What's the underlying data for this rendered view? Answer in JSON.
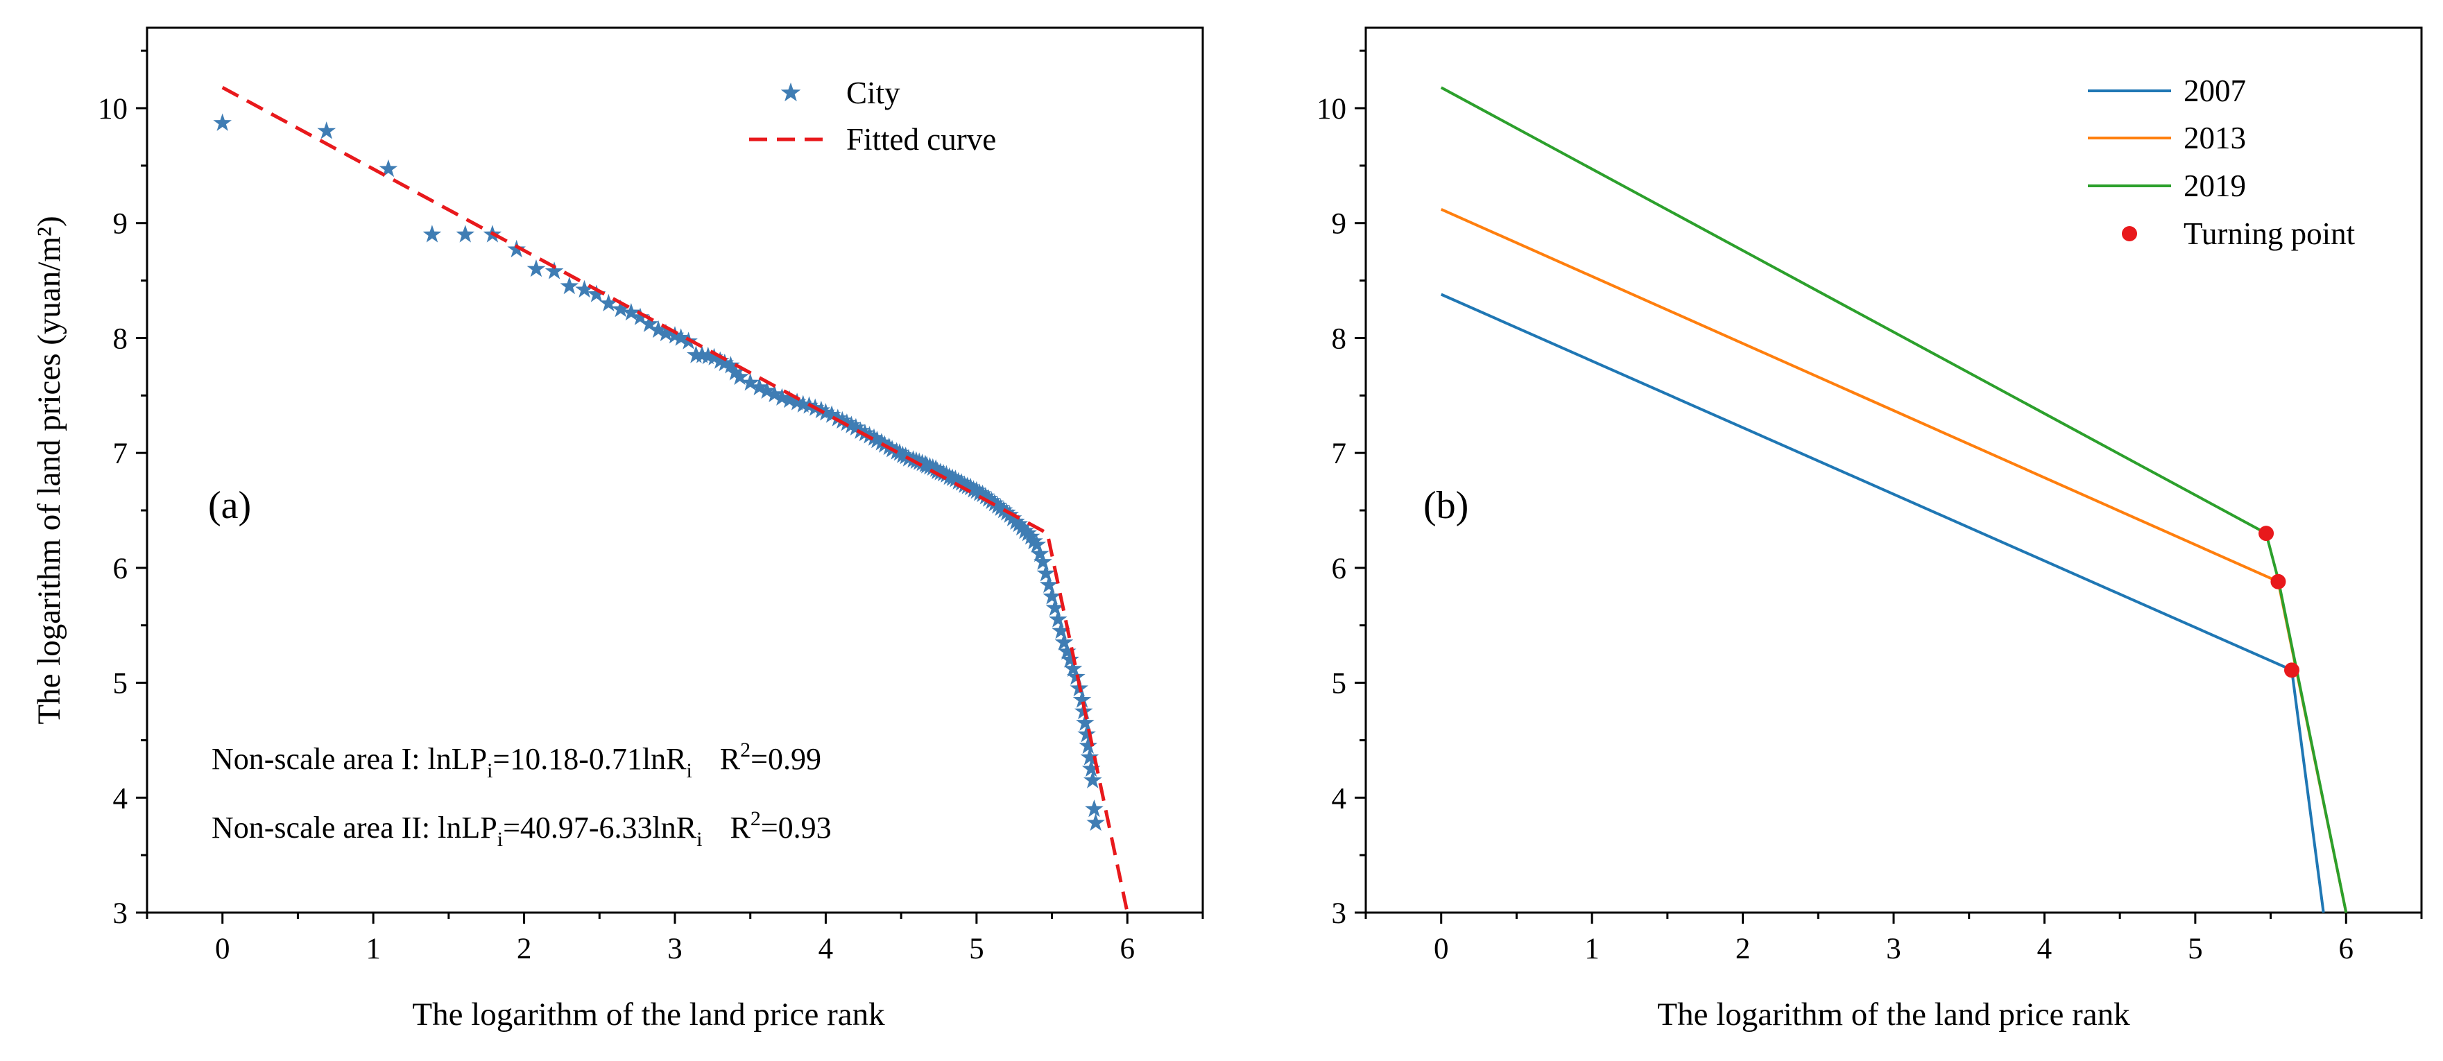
{
  "chart_data": [
    {
      "type": "scatter",
      "panel_label": "(a)",
      "xlabel": "The logarithm of the land price rank",
      "ylabel": "The logarithm of land prices (yuan/m²)",
      "xlim": [
        -0.5,
        6.5
      ],
      "ylim": [
        3,
        10.7
      ],
      "xticks": [
        0,
        1,
        2,
        3,
        4,
        5,
        6
      ],
      "yticks": [
        3,
        4,
        5,
        6,
        7,
        8,
        9,
        10
      ],
      "grid": false,
      "legend": {
        "placement": "top-right",
        "entries": [
          {
            "name": "City",
            "marker": "star",
            "color": "#3f7db4"
          },
          {
            "name": "Fitted curve",
            "style": "dashed",
            "color": "#e8191c"
          }
        ]
      },
      "series": [
        {
          "name": "City",
          "kind": "scatter",
          "marker": "star",
          "color": "#3f7db4",
          "x": [
            0,
            0.69,
            1.1,
            1.39,
            1.61,
            1.79,
            1.95,
            2.08,
            2.2,
            2.3,
            2.4,
            2.48,
            2.56,
            2.64,
            2.71,
            2.77,
            2.83,
            2.89,
            2.94,
            3.0,
            3.04,
            3.09,
            3.14,
            3.18,
            3.22,
            3.26,
            3.3,
            3.33,
            3.37,
            3.4,
            3.43,
            3.5,
            3.56,
            3.61,
            3.66,
            3.71,
            3.76,
            3.81,
            3.85,
            3.89,
            3.93,
            3.97,
            4.0,
            4.04,
            4.08,
            4.11,
            4.14,
            4.17,
            4.2,
            4.23,
            4.26,
            4.29,
            4.32,
            4.34,
            4.37,
            4.39,
            4.42,
            4.44,
            4.47,
            4.49,
            4.51,
            4.53,
            4.55,
            4.58,
            4.6,
            4.62,
            4.64,
            4.66,
            4.67,
            4.69,
            4.71,
            4.73,
            4.74,
            4.76,
            4.78,
            4.8,
            4.82,
            4.84,
            4.86,
            4.88,
            4.9,
            4.92,
            4.94,
            4.96,
            4.98,
            5.0,
            5.02,
            5.04,
            5.06,
            5.08,
            5.1,
            5.12,
            5.14,
            5.16,
            5.18,
            5.2,
            5.22,
            5.24,
            5.26,
            5.28,
            5.3,
            5.32,
            5.34,
            5.36,
            5.38,
            5.4,
            5.42,
            5.44,
            5.46,
            5.48,
            5.5,
            5.52,
            5.54,
            5.56,
            5.58,
            5.6,
            5.62,
            5.64,
            5.66,
            5.68,
            5.7,
            5.71,
            5.72,
            5.73,
            5.74,
            5.75,
            5.76,
            5.77,
            5.78,
            5.79
          ],
          "y": [
            9.87,
            9.8,
            9.47,
            8.9,
            8.9,
            8.9,
            8.77,
            8.6,
            8.58,
            8.45,
            8.42,
            8.38,
            8.3,
            8.25,
            8.22,
            8.18,
            8.12,
            8.07,
            8.04,
            8.02,
            8.0,
            7.97,
            7.85,
            7.85,
            7.84,
            7.83,
            7.8,
            7.78,
            7.76,
            7.7,
            7.66,
            7.61,
            7.57,
            7.54,
            7.51,
            7.48,
            7.46,
            7.44,
            7.42,
            7.41,
            7.39,
            7.37,
            7.35,
            7.33,
            7.3,
            7.28,
            7.26,
            7.24,
            7.22,
            7.19,
            7.17,
            7.15,
            7.13,
            7.11,
            7.09,
            7.07,
            7.05,
            7.03,
            7.01,
            7.0,
            6.98,
            6.97,
            6.95,
            6.94,
            6.93,
            6.92,
            6.91,
            6.9,
            6.89,
            6.88,
            6.87,
            6.86,
            6.84,
            6.83,
            6.82,
            6.81,
            6.79,
            6.78,
            6.77,
            6.75,
            6.74,
            6.72,
            6.71,
            6.7,
            6.68,
            6.67,
            6.65,
            6.64,
            6.62,
            6.6,
            6.58,
            6.56,
            6.54,
            6.52,
            6.5,
            6.48,
            6.46,
            6.43,
            6.4,
            6.38,
            6.35,
            6.32,
            6.3,
            6.27,
            6.23,
            6.2,
            6.12,
            6.05,
            5.95,
            5.85,
            5.75,
            5.65,
            5.55,
            5.45,
            5.35,
            5.27,
            5.2,
            5.12,
            5.05,
            4.95,
            4.85,
            4.75,
            4.65,
            4.55,
            4.45,
            4.35,
            4.25,
            4.15,
            3.9,
            3.78
          ]
        },
        {
          "name": "Fitted curve",
          "kind": "line",
          "style": "dashed",
          "color": "#e8191c",
          "x": [
            0,
            5.47,
            6.0
          ],
          "y": [
            10.18,
            6.3,
            3.0
          ]
        }
      ],
      "annotations": [
        {
          "text_main": "Non-scale area I: lnLP",
          "sub": "i",
          "text_mid": "=10.18-0.71lnR",
          "sub2": "i",
          "text_r2": "R",
          "sup": "2",
          "r2_tail": "=0.99"
        },
        {
          "text_main": "Non-scale area II: lnLP",
          "sub": "i",
          "text_mid": "=40.97-6.33lnR",
          "sub2": "i",
          "text_r2": "R",
          "sup": "2",
          "r2_tail": "=0.93"
        }
      ]
    },
    {
      "type": "line",
      "panel_label": "(b)",
      "xlabel": "The logarithm of the land price rank",
      "ylabel": "",
      "xlim": [
        -0.5,
        6.5
      ],
      "ylim": [
        3,
        10.7
      ],
      "xticks": [
        0,
        1,
        2,
        3,
        4,
        5,
        6
      ],
      "yticks": [
        3,
        4,
        5,
        6,
        7,
        8,
        9,
        10
      ],
      "grid": false,
      "legend": {
        "placement": "top-right",
        "entries": [
          {
            "name": "2007",
            "style": "line",
            "color": "#1f77b4"
          },
          {
            "name": "2013",
            "style": "line",
            "color": "#ff7f0e"
          },
          {
            "name": "2019",
            "style": "line",
            "color": "#2ca02c"
          },
          {
            "name": "Turning point",
            "style": "dot",
            "color": "#e8191c"
          }
        ]
      },
      "series": [
        {
          "name": "2007",
          "color": "#1f77b4",
          "x": [
            0,
            5.64,
            5.85
          ],
          "y": [
            8.38,
            5.11,
            3.0
          ]
        },
        {
          "name": "2013",
          "color": "#ff7f0e",
          "x": [
            0,
            5.55,
            6.0
          ],
          "y": [
            9.12,
            5.88,
            3.0
          ]
        },
        {
          "name": "2019",
          "color": "#2ca02c",
          "x": [
            0,
            5.47,
            5.55,
            6.0
          ],
          "y": [
            10.18,
            6.3,
            5.9,
            3.0
          ]
        }
      ],
      "turning_points": {
        "name": "Turning point",
        "color": "#e8191c",
        "x": [
          5.47,
          5.55,
          5.64
        ],
        "y": [
          6.3,
          5.88,
          5.11
        ]
      }
    }
  ]
}
